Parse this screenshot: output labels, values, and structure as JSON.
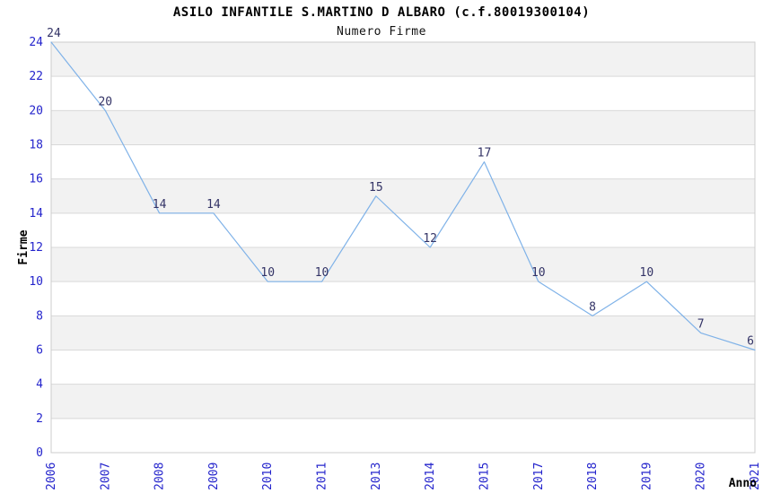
{
  "chart_data": {
    "type": "line",
    "title": "ASILO INFANTILE S.MARTINO D ALBARO (c.f.80019300104)",
    "subtitle": "Numero Firme",
    "xlabel": "Anno",
    "ylabel": "Firme",
    "categories": [
      "2006",
      "2007",
      "2008",
      "2009",
      "2010",
      "2011",
      "2013",
      "2014",
      "2015",
      "2017",
      "2018",
      "2019",
      "2020",
      "2021"
    ],
    "values": [
      24,
      20,
      14,
      14,
      10,
      10,
      15,
      12,
      17,
      10,
      8,
      10,
      7,
      6
    ],
    "ylim": [
      0,
      24
    ],
    "ytick_step": 2,
    "grid": "horizontal-on",
    "legend_position": "none",
    "point_labels_visible": true,
    "x_tick_rotation_degrees": 90,
    "colors": {
      "line": "#7FB2E8",
      "tick_label": "#2424CC",
      "data_label": "#333366",
      "band": "#F2F2F2",
      "grid": "#D9D9D9",
      "border": "#CCCCCC",
      "text": "#000000",
      "background": "#FFFFFF"
    }
  }
}
